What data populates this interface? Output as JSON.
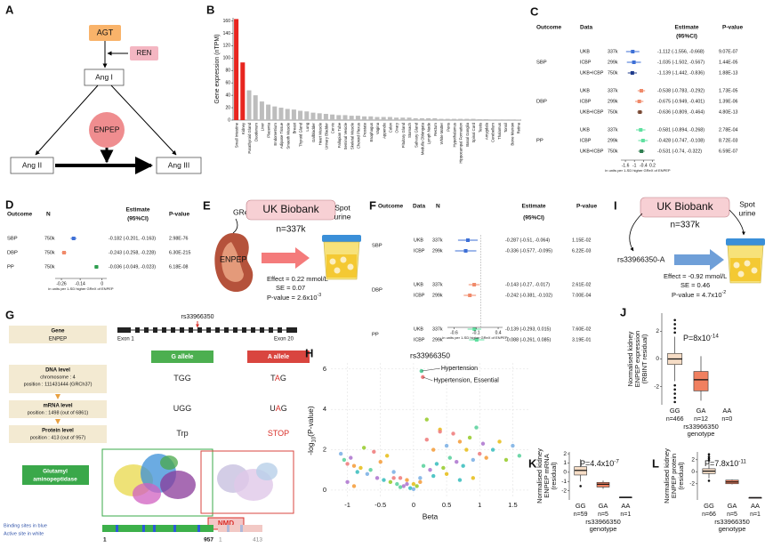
{
  "A": {
    "label": "A",
    "agt": "AGT",
    "ren": "REN",
    "ang1": "Ang I",
    "enpep": "ENPEP",
    "ang2": "Ang II",
    "ang3": "Ang III"
  },
  "B": {
    "label": "B",
    "chart_data": {
      "type": "bar",
      "ylabel": "Gene expression (nTPM)",
      "categories": [
        "Small Intestine",
        "Kidney",
        "Parathyroid Gland",
        "Duodenum",
        "Liver",
        "Placenta",
        "Endometrium",
        "Adipose Tissue",
        "Smooth Muscle",
        "Breast",
        "Thyroid Gland",
        "Lung",
        "Gallbladder",
        "Heart Muscle",
        "Urinary Bladder",
        "Cervix",
        "Fallopian Tube",
        "Seminal Vesicle",
        "Skeletal Muscle",
        "Choroid Plexus",
        "Prostate",
        "Esophagus",
        "Vagina",
        "Appendix",
        "Colon",
        "Ovary",
        "Pituitary Gland",
        "Stomach",
        "Salivary Gland",
        "Medulla Oblongata",
        "Lymph Node",
        "Rectum",
        "White Matter",
        "Pons",
        "Hypothalamus",
        "Hippocampal Formation",
        "Basal Ganglia",
        "Spinal Cord",
        "Testis",
        "Amygdala",
        "Cerebellum",
        "Thalamus",
        "Tonsil",
        "Bone Marrow",
        "Retina"
      ],
      "values": [
        163,
        93,
        48,
        40,
        30,
        25,
        22,
        20,
        18,
        17,
        15,
        14,
        12,
        11,
        10,
        9,
        8,
        8,
        7,
        7,
        6,
        6,
        5,
        5,
        5,
        4,
        4,
        4,
        3,
        3,
        3,
        3,
        2,
        2,
        2,
        2,
        2,
        2,
        1.5,
        1.5,
        1,
        1,
        1,
        1,
        0.5
      ],
      "colors": [
        "#e8251f",
        "#e8251f",
        "#bdbdbd",
        "#bdbdbd",
        "#bdbdbd",
        "#bdbdbd",
        "#bdbdbd",
        "#bdbdbd",
        "#bdbdbd",
        "#bdbdbd",
        "#bdbdbd",
        "#bdbdbd",
        "#bdbdbd",
        "#bdbdbd",
        "#bdbdbd",
        "#bdbdbd",
        "#bdbdbd",
        "#bdbdbd",
        "#bdbdbd",
        "#bdbdbd",
        "#bdbdbd",
        "#bdbdbd",
        "#bdbdbd",
        "#bdbdbd",
        "#bdbdbd",
        "#bdbdbd",
        "#bdbdbd",
        "#bdbdbd",
        "#bdbdbd",
        "#bdbdbd",
        "#bdbdbd",
        "#bdbdbd",
        "#bdbdbd",
        "#bdbdbd",
        "#bdbdbd",
        "#bdbdbd",
        "#bdbdbd",
        "#bdbdbd",
        "#bdbdbd",
        "#bdbdbd",
        "#bdbdbd",
        "#bdbdbd",
        "#bdbdbd",
        "#bdbdbd",
        "#bdbdbd"
      ],
      "ylim": [
        0,
        165
      ],
      "yticks": [
        0,
        20,
        40,
        60,
        80,
        100,
        120,
        140,
        160
      ]
    }
  },
  "C": {
    "label": "C",
    "headers": {
      "outcome": "Outcome",
      "data": "Data",
      "estimate": "Estimate",
      "ci": "(95%CI)",
      "p": "P-value"
    },
    "groups": [
      {
        "name": "SBP",
        "rows": [
          {
            "data": "UKB",
            "n": "337k",
            "est": -1.112,
            "lo": -1.556,
            "hi": -0.668,
            "ci": "-1.112 (-1.556, -0.668)",
            "p": "9.07E-07",
            "color": "#3d6fd6"
          },
          {
            "data": "ICBP",
            "n": "299k",
            "est": -1.035,
            "lo": -1.502,
            "hi": -0.567,
            "ci": "-1.035 (-1.502, -0.567)",
            "p": "1.44E-05",
            "color": "#3d6fd6"
          },
          {
            "data": "UKB+ICBP",
            "n": "750k",
            "est": -1.139,
            "lo": -1.442,
            "hi": -0.836,
            "ci": "-1.139 (-1.442, -0.836)",
            "p": "1.88E-13",
            "color": "#1f3b8c"
          }
        ]
      },
      {
        "name": "DBP",
        "rows": [
          {
            "data": "UKB",
            "n": "337k",
            "est": -0.538,
            "lo": -0.783,
            "hi": -0.292,
            "ci": "-0.538 (-0.783, -0.292)",
            "p": "1.73E-05",
            "color": "#f08a6a"
          },
          {
            "data": "ICBP",
            "n": "299k",
            "est": -0.675,
            "lo": -0.949,
            "hi": -0.401,
            "ci": "-0.675 (-0.949, -0.401)",
            "p": "1.39E-06",
            "color": "#f08a6a"
          },
          {
            "data": "UKB+ICBP",
            "n": "750k",
            "est": -0.636,
            "lo": -0.809,
            "hi": -0.464,
            "ci": "-0.636 (-0.809, -0.464)",
            "p": "4.80E-13",
            "color": "#7a4a35"
          }
        ]
      },
      {
        "name": "PP",
        "rows": [
          {
            "data": "UKB",
            "n": "337k",
            "est": -0.581,
            "lo": -0.894,
            "hi": -0.268,
            "ci": "-0.581 (-0.894, -0.268)",
            "p": "2.78E-04",
            "color": "#5fe0a0"
          },
          {
            "data": "ICBP",
            "n": "299k",
            "est": -0.428,
            "lo": -0.747,
            "hi": -0.108,
            "ci": "-0.428 (-0.747, -0.108)",
            "p": "8.72E-03",
            "color": "#5fe0a0"
          },
          {
            "data": "UKB+ICBP",
            "n": "750k",
            "est": -0.531,
            "lo": -0.74,
            "hi": -0.322,
            "ci": "-0.531 (-0.74, -0.322)",
            "p": "6.59E-07",
            "color": "#2e7d4f"
          }
        ]
      }
    ],
    "xlim": [
      -1.9,
      0.35
    ],
    "xticks": [
      -1.6,
      -1,
      -0.4,
      0.2
    ],
    "xlabel": "in units per 1-SD higher GReX of ENPEP"
  },
  "D": {
    "label": "D",
    "headers": {
      "outcome": "Outcome",
      "n": "N",
      "estimate": "Estimate",
      "ci": "(95%CI)",
      "p": "P-value"
    },
    "groups": [
      {
        "name": "SBP",
        "rows": [
          {
            "n": "750k",
            "est": -0.182,
            "lo": -0.201,
            "hi": -0.163,
            "ci": "-0.182 (-0.201, -0.163)",
            "p": "2.98E-76",
            "color": "#3d6fd6"
          }
        ]
      },
      {
        "name": "DBP",
        "rows": [
          {
            "n": "750k",
            "est": -0.243,
            "lo": -0.258,
            "hi": -0.228,
            "ci": "-0.243 (-0.258, -0.228)",
            "p": "6.30E-215",
            "color": "#f08a6a"
          }
        ]
      },
      {
        "name": "PP",
        "rows": [
          {
            "n": "750k",
            "est": -0.036,
            "lo": -0.049,
            "hi": -0.023,
            "ci": "-0.036 (-0.049, -0.023)",
            "p": "6.18E-08",
            "color": "#2e9e4f"
          }
        ]
      }
    ],
    "xlim": [
      -0.3,
      0.03
    ],
    "xticks": [
      -0.26,
      -0.14,
      0
    ],
    "xlabel": "in units per 1-SD higher GReX of ENPEP"
  },
  "E": {
    "label": "E",
    "grex": "GReX",
    "biobank": "UK Biobank",
    "n": "n=337k",
    "spot": [
      "Spot",
      "urine"
    ],
    "gene": "ENPEP",
    "effect": "Effect = 0.22 mmol/L",
    "se": "SE = 0.07",
    "p_base": "P-value = 2.6x10",
    "p_sup": "-3"
  },
  "F": {
    "label": "F",
    "headers": {
      "outcome": "Outcome",
      "data": "Data",
      "n": "N",
      "estimate": "Estimate",
      "ci": "(95%CI)",
      "p": "P-value"
    },
    "groups": [
      {
        "name": "SBP",
        "rows": [
          {
            "data": "UKB",
            "n": "337k",
            "est": -0.287,
            "lo": -0.51,
            "hi": -0.064,
            "ci": "-0.287 (-0.51, -0.064)",
            "p": "1.15E-02",
            "color": "#3d6fd6"
          },
          {
            "data": "ICBP",
            "n": "299k",
            "est": -0.336,
            "lo": -0.577,
            "hi": -0.095,
            "ci": "-0.336 (-0.577, -0.095)",
            "p": "6.22E-03",
            "color": "#3d6fd6"
          }
        ]
      },
      {
        "name": "DBP",
        "rows": [
          {
            "data": "UKB",
            "n": "337k",
            "est": -0.143,
            "lo": -0.27,
            "hi": -0.017,
            "ci": "-0.143 (-0.27, -0.017)",
            "p": "2.61E-02",
            "color": "#f08a6a"
          },
          {
            "data": "ICBP",
            "n": "299k",
            "est": -0.242,
            "lo": -0.381,
            "hi": -0.102,
            "ci": "-0.242 (-0.381, -0.102)",
            "p": "7.00E-04",
            "color": "#f08a6a"
          }
        ]
      },
      {
        "name": "PP",
        "rows": [
          {
            "data": "UKB",
            "n": "337k",
            "est": -0.139,
            "lo": -0.293,
            "hi": 0.015,
            "ci": "-0.139 (-0.293, 0.015)",
            "p": "7.60E-02",
            "color": "#5fe0a0"
          },
          {
            "data": "ICBP",
            "n": "299k",
            "est": -0.088,
            "lo": -0.261,
            "hi": 0.085,
            "ci": "-0.088 (-0.261, 0.085)",
            "p": "3.19E-01",
            "color": "#5fe0a0"
          }
        ]
      }
    ],
    "xlim": [
      -0.75,
      0.5
    ],
    "xticks": [
      -0.6,
      -0.1,
      0.4
    ],
    "reference_line": 0,
    "xlabel": "in units per 1-SD higher GReX of ENPEP"
  },
  "G": {
    "label": "G",
    "snp": "rs33966350",
    "exon_start": "Exon 1",
    "exon_end": "Exon 20",
    "gene": [
      "Gene",
      "ENPEP"
    ],
    "alleles": [
      "G allele",
      "A allele"
    ],
    "levels": [
      {
        "title": "DNA level",
        "lines": [
          "chromosome : 4",
          "position : 111431444 (GRCh37)"
        ],
        "g": [
          "T",
          "G",
          "G"
        ],
        "a": [
          "T",
          "A",
          "G"
        ]
      },
      {
        "title": "mRNA level",
        "lines": [
          "position : 1498 (out of 6861)"
        ],
        "g": [
          "U",
          "G",
          "G"
        ],
        "a": [
          "U",
          "A",
          "G"
        ]
      },
      {
        "title": "Protein level",
        "lines": [
          "position : 413 (out of 957)"
        ],
        "g": [
          "Trp"
        ],
        "a": [
          "STOP"
        ]
      }
    ],
    "protein": [
      "Glutamyl",
      "aminopeptidase"
    ],
    "nmd": "NMD",
    "legend": [
      "Binding sites in blue",
      "Active site in white"
    ],
    "full_bar": {
      "start": "1",
      "end": "957"
    },
    "trunc_bar": {
      "start": "1",
      "end": "413"
    }
  },
  "H": {
    "label": "H",
    "chart_data": {
      "type": "scatter",
      "title": "rs33966350",
      "xlabel": "Beta",
      "ylabel_parts": [
        "-log",
        "10",
        "(P-value)"
      ],
      "x": [
        -1.1,
        -1.05,
        -1.0,
        -0.95,
        -0.9,
        -0.85,
        -0.8,
        -0.75,
        -0.7,
        -0.65,
        -0.6,
        -0.55,
        -0.5,
        -0.45,
        -0.4,
        -0.35,
        -0.3,
        -0.25,
        -0.2,
        -0.15,
        -0.1,
        -0.05,
        0,
        0.05,
        0.1,
        0.15,
        0.2,
        0.25,
        0.3,
        0.35,
        0.4,
        0.45,
        0.5,
        0.55,
        0.6,
        0.65,
        0.7,
        0.75,
        0.8,
        0.85,
        0.9,
        0.95,
        1.0,
        1.05,
        1.1,
        1.2,
        1.3,
        1.4,
        1.5,
        1.6,
        -0.3,
        -0.1,
        0.1,
        0.3,
        0.5,
        0.2,
        0.0,
        -0.2,
        0.4,
        -1.0,
        -0.9,
        0.7,
        0.9
      ],
      "y": [
        1.8,
        1.5,
        1.3,
        1.6,
        1.2,
        0.9,
        1.1,
        2.1,
        0.8,
        1.0,
        1.9,
        0.6,
        1.4,
        0.5,
        1.7,
        0.4,
        0.9,
        0.3,
        0.6,
        0.2,
        0.5,
        0.1,
        0.3,
        0.2,
        0.6,
        1.2,
        2.5,
        1.0,
        2.0,
        1.3,
        3.0,
        1.1,
        2.2,
        1.6,
        2.8,
        1.4,
        2.4,
        1.2,
        2.0,
        2.6,
        1.5,
        3.1,
        1.8,
        2.3,
        1.6,
        2.0,
        2.4,
        1.5,
        2.2,
        1.7,
        0.6,
        0.3,
        0.4,
        0.7,
        0.8,
        3.5,
        0.05,
        0.15,
        2.9,
        0.4,
        0.2,
        0.5,
        0.6
      ],
      "palette": [
        "#7fb3e6",
        "#5fd3a0",
        "#f08080",
        "#b07ad0",
        "#f5a040",
        "#40c0c0",
        "#e8c020",
        "#9acd32"
      ],
      "annotations": [
        {
          "text": "Hypertension",
          "x": 0.12,
          "y": 5.9
        },
        {
          "text": "Hypertension, Essential",
          "x": 0.14,
          "y": 5.6
        }
      ],
      "xlim": [
        -1.25,
        1.75
      ],
      "ylim": [
        -0.4,
        6.3
      ],
      "xticks": [
        -1,
        -0.5,
        0,
        0.5,
        1,
        1.5
      ],
      "yticks": [
        0,
        2,
        4,
        6
      ],
      "grid": true
    }
  },
  "I": {
    "label": "I",
    "biobank": "UK Biobank",
    "n": "n=337k",
    "spot": [
      "Spot",
      "urine"
    ],
    "snp": "rs33966350-A",
    "effect": "Effect = -0.92 mmol/L",
    "se": "SE = 0.46",
    "p_base": "P-value = 4.7x10",
    "p_sup": "-2"
  },
  "J": {
    "label": "J",
    "chart_data": {
      "type": "box",
      "p_base": "P=8x10",
      "p_sup": "-14",
      "ylabel": [
        "Normalised kidney",
        "ENPEP expression",
        "(RBINT residual)"
      ],
      "xlabel": [
        "rs33966350",
        "genotype"
      ],
      "categories": [
        "GG",
        "GA",
        "AA"
      ],
      "n_labels": [
        "n=466",
        "n=12",
        "n=0"
      ],
      "boxes": [
        {
          "min": -1.6,
          "q1": -0.4,
          "median": 0.0,
          "q3": 0.4,
          "max": 1.6
        },
        {
          "min": -3.0,
          "q1": -2.3,
          "median": -1.5,
          "q3": -0.9,
          "max": 0.2
        },
        null
      ],
      "outliers": [
        [
          1.9,
          2.2,
          2.5,
          2.8,
          -1.9,
          -2.2,
          -2.5,
          -2.8,
          -3.1
        ],
        [],
        []
      ],
      "colors": [
        "#f5dcc5",
        "#f08060",
        "#f08060"
      ],
      "ylim": [
        -3.3,
        3.3
      ],
      "yticks": [
        -2,
        0,
        2
      ]
    }
  },
  "K": {
    "label": "K",
    "chart_data": {
      "type": "box",
      "p_base": "P=4.4x10",
      "p_sup": "-7",
      "ylabel": [
        "Normalised kidney",
        "ENPEP mRNA",
        "(residual)"
      ],
      "xlabel": [
        "rs33966350",
        "genotype"
      ],
      "categories": [
        "GG",
        "GA",
        "AA"
      ],
      "n_labels": [
        "n=59",
        "n=5",
        "n=1"
      ],
      "boxes": [
        {
          "min": -1.0,
          "q1": -0.3,
          "median": 0.2,
          "q3": 0.6,
          "max": 1.4
        },
        {
          "min": -1.8,
          "q1": -1.6,
          "median": -1.3,
          "q3": -1.1,
          "max": -0.9
        },
        {
          "min": -2.7,
          "q1": -2.7,
          "median": -2.7,
          "q3": -2.7,
          "max": -2.7
        }
      ],
      "outliers": [
        [
          -1.5
        ],
        [],
        []
      ],
      "colors": [
        "#f5dcc5",
        "#f08060",
        "#f08060"
      ],
      "ylim": [
        -3.0,
        2.2
      ],
      "yticks": [
        -2,
        -1,
        0,
        1,
        2
      ]
    }
  },
  "L": {
    "label": "L",
    "chart_data": {
      "type": "box",
      "p_base": "P=7.8x10",
      "p_sup": "-11",
      "ylabel": [
        "Normalised kidney",
        "ENPEP protein",
        "(residual)"
      ],
      "xlabel": [
        "rs33966350",
        "genotype"
      ],
      "categories": [
        "GG",
        "GA",
        "AA"
      ],
      "n_labels": [
        "n=66",
        "n=5",
        "n=1"
      ],
      "boxes": [
        {
          "min": -1.1,
          "q1": -0.3,
          "median": 0.1,
          "q3": 0.5,
          "max": 1.6
        },
        {
          "min": -2.1,
          "q1": -2.0,
          "median": -1.7,
          "q3": -1.4,
          "max": -1.3
        },
        {
          "min": -4.3,
          "q1": -4.3,
          "median": -4.3,
          "q3": -4.3,
          "max": -4.3
        }
      ],
      "outliers": [
        [
          1.9,
          2.2,
          2.5,
          2.9,
          -1.5
        ],
        [],
        []
      ],
      "colors": [
        "#f5dcc5",
        "#f08060",
        "#f08060"
      ],
      "ylim": [
        -4.7,
        3.3
      ],
      "yticks": [
        -2,
        0,
        2
      ]
    }
  }
}
